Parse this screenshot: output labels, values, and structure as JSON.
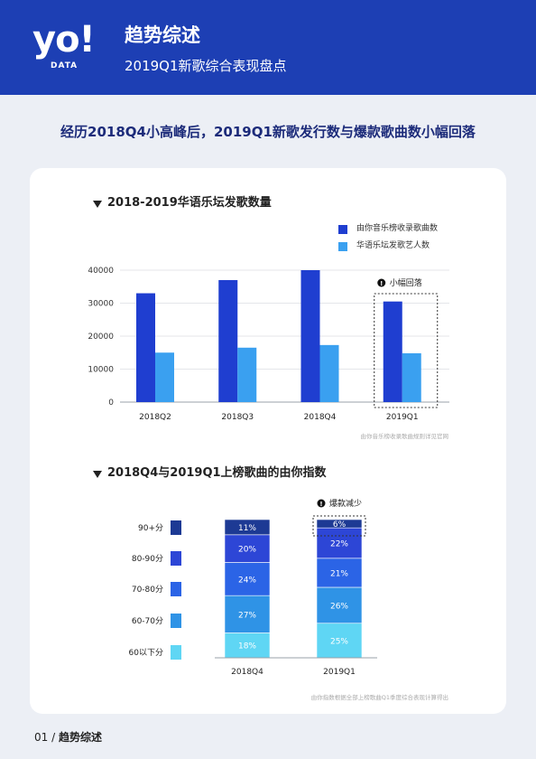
{
  "header": {
    "logo_text": "yo!",
    "logo_sub": "DATA",
    "title": "趋势综述",
    "subtitle": "2019Q1新歌综合表现盘点"
  },
  "headline": "经历2018Q4小高峰后，2019Q1新歌发行数与爆款歌曲数小幅回落",
  "colors": {
    "header_bg": "#1d3fb4",
    "series_dark": "#1f3ed0",
    "series_light": "#3aa0f0",
    "tier_90": "#1d3a94",
    "tier_80": "#2d46d6",
    "tier_70": "#2b64e6",
    "tier_60": "#2f93e6",
    "tier_below60": "#5fd6f4"
  },
  "chart_data": [
    {
      "type": "bar",
      "title": "2018-2019华语乐坛发歌数量",
      "categories": [
        "2018Q2",
        "2018Q3",
        "2018Q4",
        "2019Q1"
      ],
      "series": [
        {
          "name": "由你音乐榜收录歌曲数",
          "values": [
            33000,
            37000,
            40000,
            30500
          ]
        },
        {
          "name": "华语乐坛发歌艺人数",
          "values": [
            15000,
            16500,
            17300,
            14800
          ]
        }
      ],
      "yticks": [
        0,
        10000,
        20000,
        30000,
        40000
      ],
      "ylim": [
        0,
        40000
      ],
      "legend": "top-right",
      "annotation": "小幅回落",
      "note": "由你音乐榜收录歌曲规则详见官网"
    },
    {
      "type": "bar",
      "stacked": true,
      "title": "2018Q4与2019Q1上榜歌曲的由你指数",
      "categories": [
        "2018Q4",
        "2019Q1"
      ],
      "series": [
        {
          "name": "60以下分",
          "values": [
            18,
            25
          ]
        },
        {
          "name": "60-70分",
          "values": [
            27,
            26
          ]
        },
        {
          "name": "70-80分",
          "values": [
            24,
            21
          ]
        },
        {
          "name": "80-90分",
          "values": [
            20,
            22
          ]
        },
        {
          "name": "90+分",
          "values": [
            11,
            6
          ]
        }
      ],
      "value_suffix": "%",
      "legend": "left",
      "annotation": "爆款减少",
      "note": "由你指数根据全部上榜歌曲Q1季度综合表现计算得出"
    }
  ],
  "footer": {
    "page": "01",
    "sep": "/",
    "section": "趋势综述"
  }
}
